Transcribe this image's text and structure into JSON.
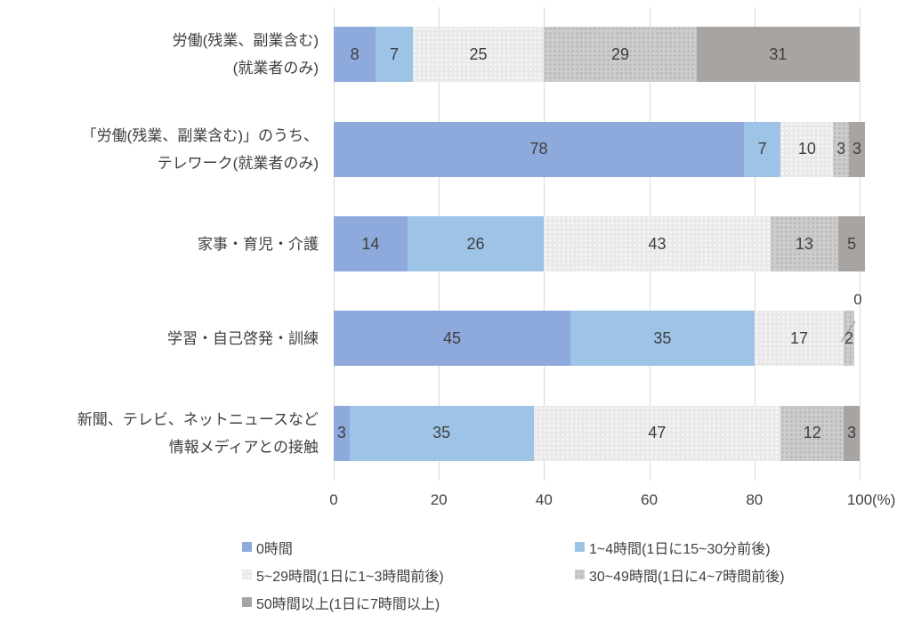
{
  "chart_data": {
    "type": "bar",
    "orientation": "horizontal",
    "stacked": true,
    "grid": true,
    "legend_position": "bottom",
    "xlim": [
      0,
      100
    ],
    "x_ticks": [
      0,
      20,
      40,
      60,
      80,
      100
    ],
    "axis_unit": "(%)",
    "categories": [
      {
        "lines": [
          "労働(残業、副業含む)",
          "(就業者のみ)"
        ]
      },
      {
        "lines": [
          "「労働(残業、副業含む)」のうち、",
          "テレワーク(就業者のみ)"
        ]
      },
      {
        "lines": [
          "家事・育児・介護"
        ]
      },
      {
        "lines": [
          "学習・自己啓発・訓練"
        ]
      },
      {
        "lines": [
          "新聞、テレビ、ネットニュースなど",
          "情報メディアとの接触"
        ]
      }
    ],
    "series": [
      {
        "name": "0時間",
        "color": "#8ea9db",
        "values": [
          8,
          78,
          14,
          45,
          3
        ]
      },
      {
        "name": "1~4時間(1日に15~30分前後)",
        "color": "#9dc3e6",
        "values": [
          7,
          7,
          26,
          35,
          35
        ]
      },
      {
        "name": "5~29時間(1日に1~3時間前後)",
        "color": "#e9e9e9",
        "values": [
          25,
          10,
          43,
          17,
          47
        ]
      },
      {
        "name": "30~49時間(1日に4~7時間前後)",
        "color": "#cccccc",
        "values": [
          29,
          3,
          13,
          2,
          12
        ]
      },
      {
        "name": "50時間以上(1日に7時間以上)",
        "color": "#a8a4a1",
        "values": [
          31,
          3,
          5,
          0,
          3
        ]
      }
    ],
    "callout": {
      "row": 3,
      "series": 4,
      "label": "0"
    }
  },
  "colors": {
    "gridline": "#d9d9d9",
    "text": "#3f3f3f"
  }
}
